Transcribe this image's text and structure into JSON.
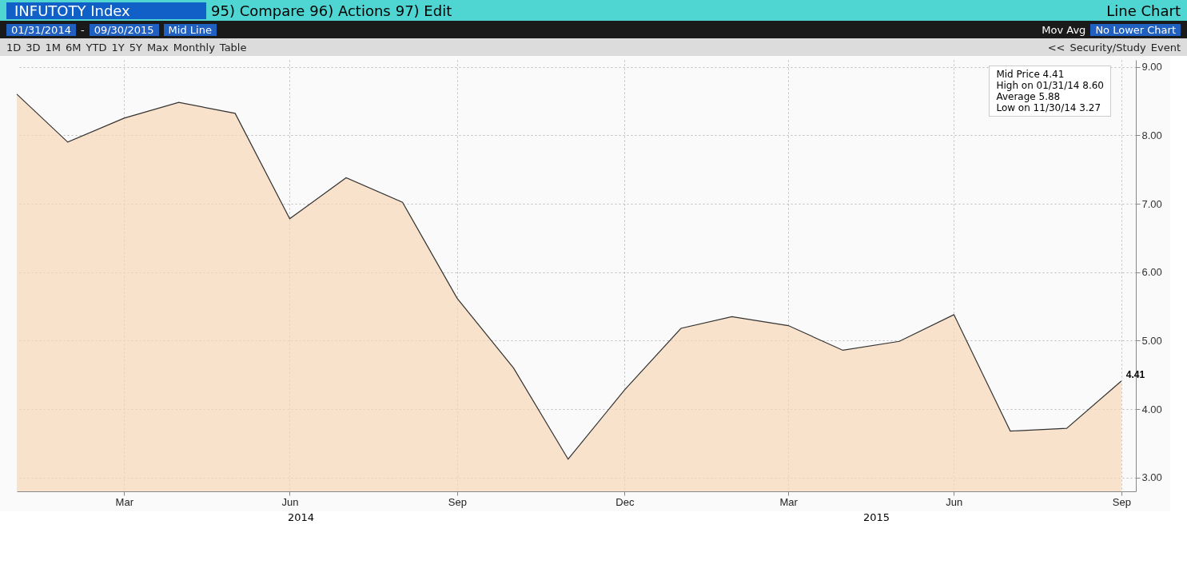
{
  "chart_data": {
    "type": "area",
    "title": "INFUTOTY Index",
    "color": "#f6d7b8",
    "x": [
      "2014-01-31",
      "2014-02-28",
      "2014-03-31",
      "2014-04-30",
      "2014-05-31",
      "2014-06-30",
      "2014-07-31",
      "2014-08-31",
      "2014-09-30",
      "2014-10-31",
      "2014-11-30",
      "2014-12-31",
      "2015-01-31",
      "2015-02-28",
      "2015-03-31",
      "2015-04-30",
      "2015-05-31",
      "2015-06-30",
      "2015-07-31",
      "2015-08-31",
      "2015-09-30"
    ],
    "values": [
      8.6,
      7.9,
      8.25,
      8.48,
      8.32,
      6.78,
      7.38,
      7.02,
      5.62,
      4.6,
      3.27,
      4.28,
      5.18,
      5.35,
      5.22,
      4.86,
      4.99,
      5.38,
      3.68,
      3.72,
      4.41
    ],
    "xlim": [
      "2014-01-31",
      "2015-10-08"
    ],
    "ylim": [
      2.8,
      9.1
    ],
    "xticks": [
      {
        "value": "2014-03-31",
        "label": "Mar"
      },
      {
        "value": "2014-06-30",
        "label": "Jun"
      },
      {
        "value": "2014-09-30",
        "label": "Sep"
      },
      {
        "value": "2014-12-31",
        "label": "Dec"
      },
      {
        "value": "2015-03-31",
        "label": "Mar"
      },
      {
        "value": "2015-06-30",
        "label": "Jun"
      },
      {
        "value": "2015-09-30",
        "label": "Sep"
      }
    ],
    "yticks": [
      {
        "value": 3,
        "label": "3.00"
      },
      {
        "value": 4,
        "label": "4.00"
      },
      {
        "value": 5,
        "label": "5.00"
      },
      {
        "value": 6,
        "label": "6.00"
      },
      {
        "value": 7,
        "label": "7.00"
      },
      {
        "value": 8,
        "label": "8.00"
      },
      {
        "value": 9,
        "label": "9.00"
      }
    ],
    "grid": true,
    "annotations": [
      "95) Compare",
      "96) Actions",
      "97) Edit",
      "Line Chart",
      "01/31/2014",
      "-",
      "09/30/2015",
      "Mid Line",
      "Mov Avg",
      "No Lower Chart",
      "1D",
      "3D",
      "1M",
      "6M",
      "YTD",
      "1Y",
      "5Y",
      "Max",
      "Monthly",
      "Table",
      "<<",
      "Security/Study",
      "Event",
      "Mid Price 4.41",
      "High on 01/31/14 8.60",
      "Average 5.88",
      "Low on 11/30/14 3.27",
      {
        "text": "4.41",
        "x": "2015-09-30",
        "y": 4.41
      },
      "2014",
      "2015"
    ]
  }
}
